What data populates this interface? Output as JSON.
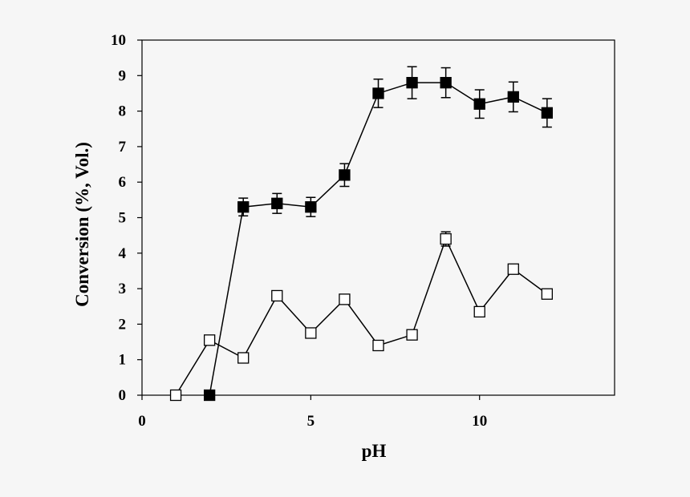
{
  "chart_data": {
    "type": "scatter",
    "title": "",
    "xlabel": "pH",
    "ylabel": "Conversion (%, Vol.)",
    "xlim": [
      0,
      14
    ],
    "ylim": [
      0,
      10
    ],
    "x_ticks": [
      0,
      5,
      10
    ],
    "x_tick_labels": [
      "0",
      "5",
      "10"
    ],
    "y_ticks": [
      0,
      1,
      2,
      3,
      4,
      5,
      6,
      7,
      8,
      9,
      10
    ],
    "y_tick_labels": [
      "0",
      "1",
      "2",
      "3",
      "4",
      "5",
      "6",
      "7",
      "8",
      "9",
      "10"
    ],
    "grid": false,
    "legend": "none",
    "series": [
      {
        "marker": "filled-square",
        "color": "#000000",
        "x": [
          2,
          3,
          4,
          5,
          6,
          7,
          8,
          9,
          10,
          11,
          12
        ],
        "y": [
          0.0,
          5.3,
          5.4,
          5.3,
          6.2,
          8.5,
          8.8,
          8.8,
          8.2,
          8.4,
          7.95
        ],
        "err": [
          0.0,
          0.25,
          0.28,
          0.27,
          0.32,
          0.4,
          0.45,
          0.42,
          0.4,
          0.42,
          0.4
        ]
      },
      {
        "marker": "open-square",
        "color": "#000000",
        "x": [
          1,
          2,
          3,
          4,
          5,
          6,
          7,
          8,
          9,
          10,
          11,
          12
        ],
        "y": [
          0.0,
          1.55,
          1.05,
          2.8,
          1.75,
          2.7,
          1.4,
          1.7,
          4.4,
          2.35,
          3.55,
          2.85
        ],
        "err": [
          0.0,
          0.05,
          0.05,
          0.08,
          0.05,
          0.07,
          0.05,
          0.05,
          0.2,
          0.1,
          0.12,
          0.08
        ]
      }
    ]
  }
}
